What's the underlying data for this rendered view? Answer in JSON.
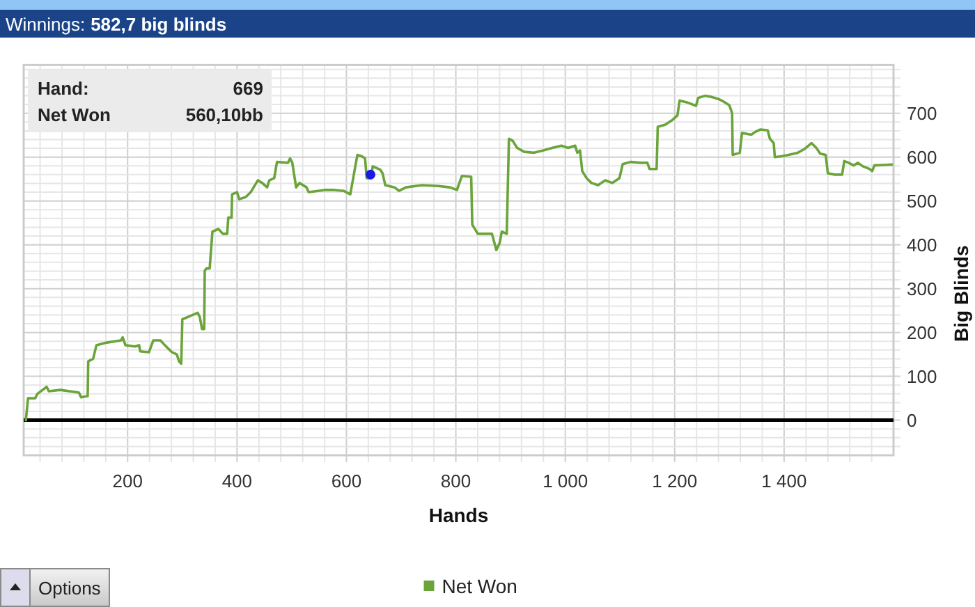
{
  "chart_data": {
    "type": "line",
    "title": "Winnings:",
    "subtitle": "582,7 big blinds",
    "xlabel": "Hands",
    "ylabel": "Big Blinds",
    "annotations": [
      "Hand:",
      "669",
      "Net Won",
      "560,10bb",
      "Options"
    ],
    "series": [
      {
        "name": "Net Won",
        "color": "#6aa43a",
        "x": [
          14,
          18,
          31,
          35,
          52,
          56,
          77,
          111,
          115,
          127,
          128,
          137,
          143,
          162,
          188,
          191,
          196,
          213,
          221,
          223,
          239,
          247,
          260,
          268,
          281,
          290,
          294,
          298,
          300,
          319,
          328,
          332,
          336,
          340,
          341,
          344,
          350,
          355,
          366,
          374,
          382,
          384,
          390,
          391,
          400,
          404,
          416,
          425,
          438,
          446,
          455,
          459,
          468,
          473,
          493,
          497,
          501,
          508,
          514,
          527,
          531,
          560,
          578,
          595,
          607,
          620,
          628,
          634,
          637,
          645,
          648,
          662,
          666,
          671,
          688,
          696,
          709,
          738,
          768,
          789,
          802,
          811,
          828,
          830,
          840,
          866,
          874,
          880,
          884,
          893,
          897,
          904,
          912,
          925,
          942,
          959,
          976,
          993,
          1005,
          1018,
          1022,
          1027,
          1031,
          1039,
          1048,
          1060,
          1073,
          1086,
          1099,
          1105,
          1120,
          1137,
          1150,
          1154,
          1167,
          1169,
          1183,
          1196,
          1205,
          1209,
          1222,
          1239,
          1243,
          1256,
          1268,
          1281,
          1289,
          1300,
          1305,
          1306,
          1319,
          1323,
          1340,
          1348,
          1357,
          1370,
          1374,
          1381,
          1383,
          1395,
          1408,
          1425,
          1438,
          1450,
          1459,
          1466,
          1476,
          1480,
          1493,
          1506,
          1510,
          1518,
          1527,
          1535,
          1544,
          1556,
          1561,
          1565,
          1582,
          1597
        ],
        "values": [
          0,
          50,
          50,
          60,
          76,
          66,
          69,
          63,
          52,
          55,
          134,
          140,
          171,
          177,
          182,
          189,
          171,
          168,
          171,
          157,
          155,
          182,
          182,
          171,
          155,
          150,
          134,
          129,
          230,
          240,
          245,
          235,
          208,
          208,
          341,
          346,
          346,
          430,
          436,
          425,
          425,
          462,
          462,
          515,
          520,
          504,
          509,
          520,
          547,
          541,
          531,
          547,
          552,
          589,
          587,
          597,
          587,
          531,
          541,
          531,
          520,
          525,
          525,
          523,
          515,
          605,
          602,
          597,
          552,
          552,
          579,
          571,
          563,
          536,
          531,
          523,
          531,
          536,
          534,
          531,
          525,
          557,
          555,
          446,
          425,
          425,
          388,
          404,
          430,
          425,
          642,
          637,
          621,
          612,
          610,
          615,
          621,
          626,
          621,
          626,
          610,
          615,
          568,
          552,
          541,
          536,
          547,
          541,
          552,
          584,
          589,
          587,
          587,
          573,
          573,
          669,
          674,
          685,
          695,
          729,
          725,
          717,
          735,
          740,
          737,
          732,
          727,
          718,
          700,
          605,
          610,
          655,
          651,
          658,
          663,
          661,
          642,
          632,
          600,
          602,
          605,
          610,
          619,
          632,
          621,
          608,
          605,
          563,
          560,
          560,
          591,
          587,
          581,
          587,
          579,
          573,
          568,
          581,
          582,
          583
        ]
      },
      {
        "type": "scatter",
        "color": "#1a1ae6",
        "marker": "circle",
        "x": [
          644
        ],
        "values": [
          560
        ]
      }
    ],
    "xlim": [
      10,
      1600
    ],
    "ylim": [
      -80,
      810
    ],
    "xticks": [
      {
        "value": 40,
        "label": null
      },
      {
        "value": 80,
        "label": null
      },
      {
        "value": 120,
        "label": null
      },
      {
        "value": 160,
        "label": null
      },
      200,
      {
        "value": 240,
        "label": null
      },
      {
        "value": 280,
        "label": null
      },
      {
        "value": 320,
        "label": null
      },
      {
        "value": 360,
        "label": null
      },
      400,
      {
        "value": 440,
        "label": null
      },
      {
        "value": 480,
        "label": null
      },
      {
        "value": 520,
        "label": null
      },
      {
        "value": 560,
        "label": null
      },
      600,
      {
        "value": 640,
        "label": null
      },
      {
        "value": 680,
        "label": null
      },
      {
        "value": 720,
        "label": null
      },
      {
        "value": 760,
        "label": null
      },
      800,
      {
        "value": 840,
        "label": null
      },
      {
        "value": 880,
        "label": null
      },
      {
        "value": 920,
        "label": null
      },
      {
        "value": 960,
        "label": null
      },
      {
        "value": 1000,
        "label": "1 000"
      },
      {
        "value": 1040,
        "label": null
      },
      {
        "value": 1080,
        "label": null
      },
      {
        "value": 1120,
        "label": null
      },
      {
        "value": 1160,
        "label": null
      },
      {
        "value": 1200,
        "label": "1 200"
      },
      {
        "value": 1240,
        "label": null
      },
      {
        "value": 1280,
        "label": null
      },
      {
        "value": 1320,
        "label": null
      },
      {
        "value": 1360,
        "label": null
      },
      {
        "value": 1400,
        "label": "1 400"
      },
      {
        "value": 1440,
        "label": null
      },
      {
        "value": 1480,
        "label": null
      },
      {
        "value": 1520,
        "label": null
      },
      {
        "value": 1560,
        "label": null
      }
    ],
    "yticks": [
      {
        "value": -60,
        "label": null
      },
      {
        "value": -40,
        "label": null
      },
      {
        "value": -20,
        "label": null
      },
      0,
      {
        "value": 20,
        "label": null
      },
      {
        "value": 40,
        "label": null
      },
      {
        "value": 60,
        "label": null
      },
      {
        "value": 80,
        "label": null
      },
      100,
      {
        "value": 120,
        "label": null
      },
      {
        "value": 140,
        "label": null
      },
      {
        "value": 160,
        "label": null
      },
      {
        "value": 180,
        "label": null
      },
      200,
      {
        "value": 220,
        "label": null
      },
      {
        "value": 240,
        "label": null
      },
      {
        "value": 260,
        "label": null
      },
      {
        "value": 280,
        "label": null
      },
      300,
      {
        "value": 320,
        "label": null
      },
      {
        "value": 340,
        "label": null
      },
      {
        "value": 360,
        "label": null
      },
      {
        "value": 380,
        "label": null
      },
      400,
      {
        "value": 420,
        "label": null
      },
      {
        "value": 440,
        "label": null
      },
      {
        "value": 460,
        "label": null
      },
      {
        "value": 480,
        "label": null
      },
      500,
      {
        "value": 520,
        "label": null
      },
      {
        "value": 540,
        "label": null
      },
      {
        "value": 560,
        "label": null
      },
      {
        "value": 580,
        "label": null
      },
      600,
      {
        "value": 620,
        "label": null
      },
      {
        "value": 640,
        "label": null
      },
      {
        "value": 660,
        "label": null
      },
      {
        "value": 680,
        "label": null
      },
      700,
      {
        "value": 720,
        "label": null
      },
      {
        "value": 740,
        "label": null
      },
      {
        "value": 760,
        "label": null
      },
      {
        "value": 780,
        "label": null
      },
      {
        "value": 800,
        "label": null
      }
    ],
    "ref_lines": [
      {
        "axis": "y",
        "value": 0,
        "color": "#000000"
      }
    ],
    "grid": true,
    "legend": "bottom",
    "marker": "none",
    "line_style": "solid"
  }
}
